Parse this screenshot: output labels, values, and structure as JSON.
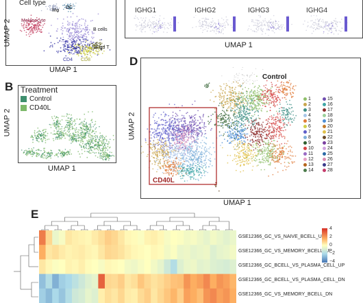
{
  "panelA": {
    "title": "Cell type",
    "cell_labels": [
      "Mφ",
      "DC",
      "Melanocyte",
      "B cells",
      "NK/gd T",
      "CD4",
      "CD8"
    ],
    "xlabel": "UMAP 1",
    "ylabel": "UMAP 2"
  },
  "panelB": {
    "letter": "B",
    "title": "Treatment",
    "legend": [
      {
        "label": "Control",
        "color": "#3f8f6e"
      },
      {
        "label": "CD40L",
        "color": "#7db96a"
      }
    ],
    "xlabel": "UMAP 1",
    "ylabel": "UMAP 2"
  },
  "panelC": {
    "genes": [
      "IGHG1",
      "IGHG2",
      "IGHG3",
      "IGHG4"
    ],
    "xlabel": "UMAP 1"
  },
  "panelD": {
    "letter": "D",
    "control_label": "Control",
    "cd40l_label": "CD40L",
    "xlabel": "UMAP 1",
    "ylabel": "UMAP 2",
    "clusters": [
      {
        "id": "1",
        "color": "#8fbf6a"
      },
      {
        "id": "2",
        "color": "#c9a64e"
      },
      {
        "id": "3",
        "color": "#3d8f86"
      },
      {
        "id": "4",
        "color": "#a7c6e8"
      },
      {
        "id": "5",
        "color": "#e07b39"
      },
      {
        "id": "6",
        "color": "#cfcf4a"
      },
      {
        "id": "7",
        "color": "#5e5ec9"
      },
      {
        "id": "8",
        "color": "#7fb0d9"
      },
      {
        "id": "9",
        "color": "#2f5f2f"
      },
      {
        "id": "10",
        "color": "#d64545"
      },
      {
        "id": "11",
        "color": "#9a6bc4"
      },
      {
        "id": "12",
        "color": "#e6a0c4"
      },
      {
        "id": "13",
        "color": "#b5651d"
      },
      {
        "id": "14",
        "color": "#4a7a4a"
      },
      {
        "id": "15",
        "color": "#6f4fb0"
      },
      {
        "id": "16",
        "color": "#3fa6a6"
      },
      {
        "id": "17",
        "color": "#8b2a2a"
      },
      {
        "id": "18",
        "color": "#9bd19b"
      },
      {
        "id": "19",
        "color": "#4f8fd6"
      },
      {
        "id": "20",
        "color": "#c47a2a"
      },
      {
        "id": "21",
        "color": "#e0c04a"
      },
      {
        "id": "22",
        "color": "#6a4a2a"
      },
      {
        "id": "23",
        "color": "#7a3fa0"
      },
      {
        "id": "24",
        "color": "#cfa3e0"
      },
      {
        "id": "25",
        "color": "#2a6aa6"
      },
      {
        "id": "26",
        "color": "#d98ab0"
      },
      {
        "id": "27",
        "color": "#3a3a8a"
      },
      {
        "id": "28",
        "color": "#c43a6a"
      }
    ]
  },
  "panelE": {
    "letter": "E",
    "rows": [
      "GSE12366_GC_VS_NAIVE_BCELL_UP",
      "GSE12366_GC_VS_MEMORY_BCELL_UP",
      "GSE12366_GC_BCELL_VS_PLASMA_CELL_UP",
      "GSE12366_GC_BCELL_VS_PLASMA_CELL_DN",
      "GSE12366_GC_VS_MEMORY_BCELL_DN"
    ],
    "colorbar_ticks": [
      "4",
      "2",
      "0",
      "−2",
      "−4"
    ],
    "heatmap": [
      [
        2.8,
        1.0,
        -0.5,
        -0.2,
        0.6,
        0.4,
        0.3,
        0.2,
        0.5,
        0.8,
        1.2,
        1.0,
        0.6,
        0.2,
        0.1,
        -0.1,
        0.3,
        0.4,
        0.2,
        -0.2,
        0.0,
        -0.1,
        -0.3,
        -0.2,
        -0.4,
        -0.6,
        -0.3,
        -0.5,
        -0.7,
        -0.5
      ],
      [
        2.0,
        0.6,
        0.8,
        0.5,
        0.3,
        0.4,
        0.5,
        0.3,
        0.2,
        0.6,
        1.0,
        0.9,
        0.7,
        0.4,
        0.2,
        0.1,
        0.0,
        0.2,
        0.1,
        -0.3,
        -0.1,
        -0.5,
        -0.4,
        -0.6,
        -0.5,
        -0.4,
        -0.8,
        -0.6,
        -0.5,
        -0.3
      ],
      [
        0.6,
        0.2,
        -0.1,
        0.0,
        0.3,
        0.2,
        0.4,
        0.1,
        0.0,
        -0.2,
        0.2,
        0.1,
        0.0,
        -0.3,
        -0.4,
        -0.2,
        0.0,
        -0.3,
        -0.6,
        -1.2,
        -1.8,
        -0.8,
        -0.5,
        -0.4,
        -0.7,
        -0.6,
        -0.8,
        -0.9,
        -1.0,
        -0.8
      ],
      [
        -2.5,
        -1.8,
        -2.8,
        -2.2,
        -2.0,
        -1.6,
        -1.2,
        -0.8,
        -0.6,
        3.2,
        1.0,
        0.9,
        1.2,
        0.6,
        0.8,
        1.4,
        1.0,
        0.7,
        0.9,
        1.2,
        1.5,
        1.6,
        2.4,
        2.0,
        2.2,
        2.6,
        2.0,
        2.4,
        2.2,
        1.8
      ],
      [
        -2.2,
        -2.6,
        -2.0,
        -2.4,
        -1.8,
        -1.2,
        -1.0,
        -0.6,
        -0.8,
        0.4,
        0.8,
        0.6,
        1.0,
        0.5,
        0.4,
        0.9,
        1.2,
        0.6,
        1.0,
        1.4,
        1.8,
        1.2,
        2.2,
        2.0,
        1.6,
        2.4,
        2.6,
        2.2,
        2.4,
        2.0
      ]
    ]
  }
}
